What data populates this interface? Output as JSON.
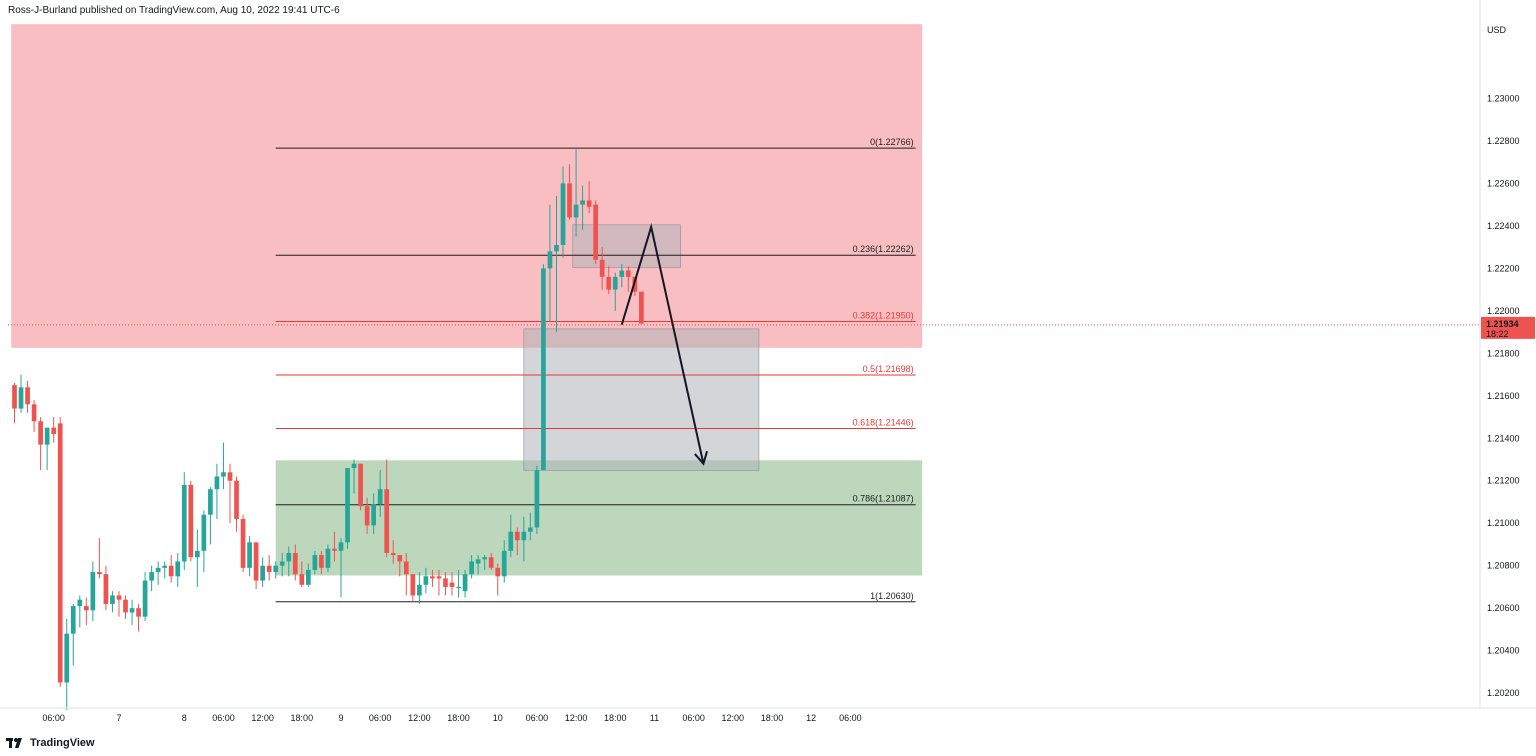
{
  "header": {
    "publisher_line": "Ross-J-Burland published on TradingView.com, Aug 10, 2022 19:41 UTC-6"
  },
  "footer": {
    "brand": "TradingView"
  },
  "colors": {
    "up": "#26a69a",
    "down": "#ef5350",
    "supply_zone": "#f7a8ae",
    "demand_zone": "#8fbc8f",
    "gray_box": "#b0b3b8",
    "fib_line_dark": "#1e1e1e",
    "fib_line_red": "#e53935",
    "price_label_bg": "#ef5350"
  },
  "chart_data": {
    "type": "candlestick",
    "currency": "USD",
    "current_price": {
      "value": 1.21934,
      "label": "1.21934",
      "countdown": "18:22"
    },
    "y_range": [
      1.2013,
      1.2336
    ],
    "y_ticks": [
      "1.20200",
      "1.20400",
      "1.20600",
      "1.20800",
      "1.21000",
      "1.21200",
      "1.21400",
      "1.21600",
      "1.21800",
      "1.22000",
      "1.22200",
      "1.22400",
      "1.22600",
      "1.22800",
      "1.23000"
    ],
    "x_ticks": [
      "06:00",
      "7",
      "8",
      "06:00",
      "12:00",
      "18:00",
      "9",
      "06:00",
      "12:00",
      "18:00",
      "10",
      "06:00",
      "12:00",
      "18:00",
      "11",
      "06:00",
      "12:00",
      "18:00",
      "12",
      "06:00"
    ],
    "x_tick_bars": [
      6,
      16,
      26,
      32,
      38,
      44,
      50,
      56,
      62,
      68,
      74,
      80,
      86,
      92,
      98,
      104,
      110,
      116,
      122,
      128
    ],
    "zones": [
      {
        "kind": "supply",
        "from_bar": -0.5,
        "to_bar": 139,
        "top": 1.2335,
        "bottom": 1.21826
      },
      {
        "kind": "demand",
        "from_bar": 40,
        "to_bar": 139,
        "top": 1.21296,
        "bottom": 1.20754
      },
      {
        "kind": "gray",
        "from_bar": 78,
        "to_bar": 114,
        "top": 1.21915,
        "bottom": 1.21249
      },
      {
        "kind": "gray",
        "from_bar": 85.5,
        "to_bar": 102,
        "top": 1.22405,
        "bottom": 1.22205
      }
    ],
    "fibonacci": {
      "from_bar": 40,
      "to_bar": 138,
      "levels": [
        {
          "label": "0(1.22766)",
          "price": 1.22766,
          "tone": "dark"
        },
        {
          "label": "0.236(1.22262)",
          "price": 1.22262,
          "tone": "dark"
        },
        {
          "label": "0.382(1.21950)",
          "price": 1.2195,
          "tone": "red"
        },
        {
          "label": "0.5(1.21698)",
          "price": 1.21698,
          "tone": "red"
        },
        {
          "label": "0.618(1.21446)",
          "price": 1.21446,
          "tone": "red"
        },
        {
          "label": "0.786(1.21087)",
          "price": 1.21087,
          "tone": "dark"
        },
        {
          "label": "1(1.20630)",
          "price": 1.2063,
          "tone": "dark"
        }
      ]
    },
    "projection_path": [
      {
        "bar": 93,
        "price": 1.21935
      },
      {
        "bar": 97.5,
        "price": 1.22395
      },
      {
        "bar": 105.5,
        "price": 1.2128
      }
    ],
    "candles": [
      [
        1.2165,
        1.2166,
        1.2147,
        1.2154
      ],
      [
        1.2154,
        1.217,
        1.2152,
        1.2164
      ],
      [
        1.2164,
        1.2167,
        1.2152,
        1.2156
      ],
      [
        1.2156,
        1.2158,
        1.2143,
        1.2148
      ],
      [
        1.2148,
        1.215,
        1.2125,
        1.2137
      ],
      [
        1.2137,
        1.2142,
        1.2125,
        1.2145
      ],
      [
        1.2145,
        1.215,
        1.2138,
        1.2142
      ],
      [
        1.2147,
        1.215,
        1.2023,
        1.2025
      ],
      [
        1.2025,
        1.2055,
        1.2012,
        1.2048
      ],
      [
        1.2048,
        1.2062,
        1.2033,
        1.2061
      ],
      [
        1.2061,
        1.2066,
        1.2051,
        1.2064
      ],
      [
        1.2061,
        1.2065,
        1.2052,
        1.2059
      ],
      [
        1.2059,
        1.2082,
        1.2054,
        1.2077
      ],
      [
        1.2077,
        1.2093,
        1.2074,
        1.2076
      ],
      [
        1.2076,
        1.208,
        1.2059,
        1.2062
      ],
      [
        1.2062,
        1.2068,
        1.2058,
        1.2066
      ],
      [
        1.2066,
        1.2068,
        1.2056,
        1.2064
      ],
      [
        1.2064,
        1.2066,
        1.2055,
        1.2058
      ],
      [
        1.2058,
        1.2064,
        1.2052,
        1.206
      ],
      [
        1.206,
        1.2062,
        1.2049,
        1.2056
      ],
      [
        1.2056,
        1.2077,
        1.2054,
        1.2073
      ],
      [
        1.2073,
        1.208,
        1.2068,
        1.2077
      ],
      [
        1.2077,
        1.2082,
        1.2071,
        1.2079
      ],
      [
        1.2079,
        1.2082,
        1.2074,
        1.208
      ],
      [
        1.208,
        1.2085,
        1.2072,
        1.2075
      ],
      [
        1.2075,
        1.2086,
        1.207,
        1.2082
      ],
      [
        1.2082,
        1.2124,
        1.2078,
        1.2118
      ],
      [
        1.2118,
        1.212,
        1.2082,
        1.2084
      ],
      [
        1.2084,
        1.2097,
        1.207,
        1.2087
      ],
      [
        1.2087,
        1.2106,
        1.2077,
        1.2104
      ],
      [
        1.2104,
        1.2117,
        1.209,
        1.2116
      ],
      [
        1.2116,
        1.2128,
        1.2102,
        1.2122
      ],
      [
        1.2122,
        1.2138,
        1.2116,
        1.2124
      ],
      [
        1.2124,
        1.2128,
        1.21,
        1.212
      ],
      [
        1.212,
        1.2122,
        1.2096,
        1.2102
      ],
      [
        1.2102,
        1.2104,
        1.2077,
        1.2079
      ],
      [
        1.2079,
        1.2094,
        1.2075,
        1.2091
      ],
      [
        1.2091,
        1.2091,
        1.2069,
        1.2073
      ],
      [
        1.2073,
        1.2084,
        1.207,
        1.208
      ],
      [
        1.208,
        1.2085,
        1.2073,
        1.2077
      ],
      [
        1.2077,
        1.2082,
        1.2074,
        1.208
      ],
      [
        1.208,
        1.2086,
        1.2075,
        1.2082
      ],
      [
        1.2082,
        1.2089,
        1.2075,
        1.2086
      ],
      [
        1.2086,
        1.209,
        1.2073,
        1.2076
      ],
      [
        1.2076,
        1.2082,
        1.207,
        1.2071
      ],
      [
        1.2071,
        1.2081,
        1.207,
        1.2078
      ],
      [
        1.2078,
        1.2087,
        1.2076,
        1.2085
      ],
      [
        1.2085,
        1.2087,
        1.2076,
        1.2079
      ],
      [
        1.2079,
        1.209,
        1.2077,
        1.2088
      ],
      [
        1.2088,
        1.2096,
        1.2082,
        1.2087
      ],
      [
        1.2087,
        1.2093,
        1.2065,
        1.2091
      ],
      [
        1.2091,
        1.2126,
        1.2088,
        1.2126
      ],
      [
        1.2126,
        1.213,
        1.2114,
        1.2128
      ],
      [
        1.2128,
        1.2128,
        1.2106,
        1.2108
      ],
      [
        1.2108,
        1.2112,
        1.2095,
        1.2099
      ],
      [
        1.2099,
        1.2114,
        1.2095,
        1.2109
      ],
      [
        1.2109,
        1.2125,
        1.2103,
        1.2116
      ],
      [
        1.2116,
        1.213,
        1.2084,
        1.2086
      ],
      [
        1.2086,
        1.2092,
        1.2081,
        1.2085
      ],
      [
        1.2085,
        1.2085,
        1.2075,
        1.2082
      ],
      [
        1.2082,
        1.2086,
        1.2066,
        1.2076
      ],
      [
        1.2076,
        1.2076,
        1.2063,
        1.2066
      ],
      [
        1.2066,
        1.2077,
        1.2062,
        1.2071
      ],
      [
        1.2071,
        1.2079,
        1.2067,
        1.2075
      ],
      [
        1.2075,
        1.2078,
        1.207,
        1.2074
      ],
      [
        1.2075,
        1.2078,
        1.2066,
        1.2074
      ],
      [
        1.2074,
        1.2077,
        1.2066,
        1.207
      ],
      [
        1.2072,
        1.2077,
        1.2066,
        1.207
      ],
      [
        1.207,
        1.2078,
        1.2065,
        1.207
      ],
      [
        1.2068,
        1.2078,
        1.2065,
        1.2076
      ],
      [
        1.2076,
        1.2085,
        1.2074,
        1.2082
      ],
      [
        1.2081,
        1.2085,
        1.2076,
        1.2083
      ],
      [
        1.2083,
        1.2085,
        1.2078,
        1.2084
      ],
      [
        1.2084,
        1.2086,
        1.2078,
        1.2079
      ],
      [
        1.2079,
        1.2081,
        1.2066,
        1.2075
      ],
      [
        1.2075,
        1.2092,
        1.2072,
        1.2087
      ],
      [
        1.2087,
        1.2104,
        1.2084,
        1.2096
      ],
      [
        1.2096,
        1.2098,
        1.2085,
        1.2092
      ],
      [
        1.2092,
        1.2103,
        1.2082,
        1.2096
      ],
      [
        1.2096,
        1.2105,
        1.2092,
        1.2098
      ],
      [
        1.2098,
        1.2127,
        1.2095,
        1.2125
      ],
      [
        1.2125,
        1.2222,
        1.2125,
        1.222
      ],
      [
        1.222,
        1.225,
        1.2195,
        1.2228
      ],
      [
        1.2228,
        1.2254,
        1.219,
        1.2231
      ],
      [
        1.2231,
        1.2268,
        1.2225,
        1.226
      ],
      [
        1.226,
        1.2269,
        1.2243,
        1.2244
      ],
      [
        1.2244,
        1.2276,
        1.2235,
        1.225
      ],
      [
        1.225,
        1.2259,
        1.2238,
        1.2252
      ],
      [
        1.2252,
        1.2261,
        1.2246,
        1.2249
      ],
      [
        1.225,
        1.2252,
        1.2222,
        1.2224
      ],
      [
        1.2224,
        1.223,
        1.221,
        1.2216
      ],
      [
        1.2216,
        1.2221,
        1.2208,
        1.221
      ],
      [
        1.221,
        1.2218,
        1.22,
        1.2216
      ],
      [
        1.2216,
        1.2222,
        1.2211,
        1.2219
      ],
      [
        1.2219,
        1.2221,
        1.2209,
        1.2216
      ],
      [
        1.2216,
        1.2216,
        1.2207,
        1.2209
      ],
      [
        1.2209,
        1.2209,
        1.2194,
        1.2194
      ]
    ]
  }
}
